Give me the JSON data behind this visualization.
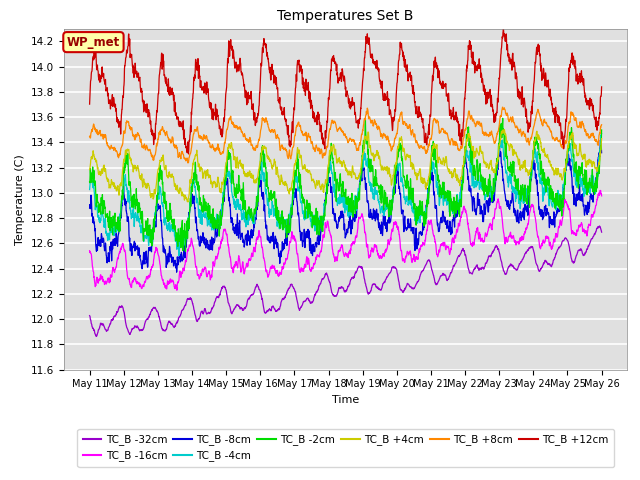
{
  "title": "Temperatures Set B",
  "xlabel": "Time",
  "ylabel": "Temperature (C)",
  "ylim": [
    11.6,
    14.3
  ],
  "yticks": [
    11.6,
    11.8,
    12.0,
    12.2,
    12.4,
    12.6,
    12.8,
    13.0,
    13.2,
    13.4,
    13.6,
    13.8,
    14.0,
    14.2
  ],
  "num_points": 2160,
  "xtick_labels": [
    "May 11",
    "May 12",
    "May 13",
    "May 14",
    "May 15",
    "May 16",
    "May 17",
    "May 18",
    "May 19",
    "May 20",
    "May 21",
    "May 22",
    "May 23",
    "May 24",
    "May 25",
    "May 26"
  ],
  "series": [
    {
      "label": "TC_B -32cm",
      "color": "#9900cc",
      "base": 11.93,
      "trend": 0.65,
      "amp1": 0.08,
      "amp2": 0.04,
      "period": 144,
      "phase": 2.5,
      "noise": 0.025,
      "smooth": 8
    },
    {
      "label": "TC_B -16cm",
      "color": "#ff00ff",
      "base": 12.33,
      "trend": 0.45,
      "amp1": 0.12,
      "amp2": 0.06,
      "period": 144,
      "phase": 2.0,
      "noise": 0.04,
      "smooth": 5
    },
    {
      "label": "TC_B -8cm",
      "color": "#0000dd",
      "base": 12.58,
      "trend": 0.45,
      "amp1": 0.18,
      "amp2": 0.08,
      "period": 144,
      "phase": 1.5,
      "noise": 0.06,
      "smooth": 3
    },
    {
      "label": "TC_B -4cm",
      "color": "#00cccc",
      "base": 12.75,
      "trend": 0.4,
      "amp1": 0.16,
      "amp2": 0.07,
      "period": 144,
      "phase": 1.0,
      "noise": 0.055,
      "smooth": 3
    },
    {
      "label": "TC_B -2cm",
      "color": "#00dd00",
      "base": 12.82,
      "trend": 0.38,
      "amp1": 0.2,
      "amp2": 0.09,
      "period": 144,
      "phase": 0.7,
      "noise": 0.06,
      "smooth": 2
    },
    {
      "label": "TC_B +4cm",
      "color": "#cccc00",
      "base": 13.1,
      "trend": 0.22,
      "amp1": 0.12,
      "amp2": 0.05,
      "period": 144,
      "phase": 0.3,
      "noise": 0.04,
      "smooth": 4
    },
    {
      "label": "TC_B +8cm",
      "color": "#ff8800",
      "base": 13.38,
      "trend": 0.15,
      "amp1": 0.1,
      "amp2": 0.04,
      "period": 144,
      "phase": 0.1,
      "noise": 0.035,
      "smooth": 5
    },
    {
      "label": "TC_B +12cm",
      "color": "#cc0000",
      "base": 13.75,
      "trend": 0.1,
      "amp1": 0.25,
      "amp2": 0.1,
      "period": 144,
      "phase": 0.0,
      "noise": 0.04,
      "smooth": 2
    }
  ],
  "legend_box": {
    "label": "WP_met",
    "facecolor": "#ffffaa",
    "edgecolor": "#cc0000",
    "textcolor": "#990000"
  },
  "bg_color": "#e0e0e0",
  "grid_color": "#ffffff",
  "linewidth": 0.9
}
